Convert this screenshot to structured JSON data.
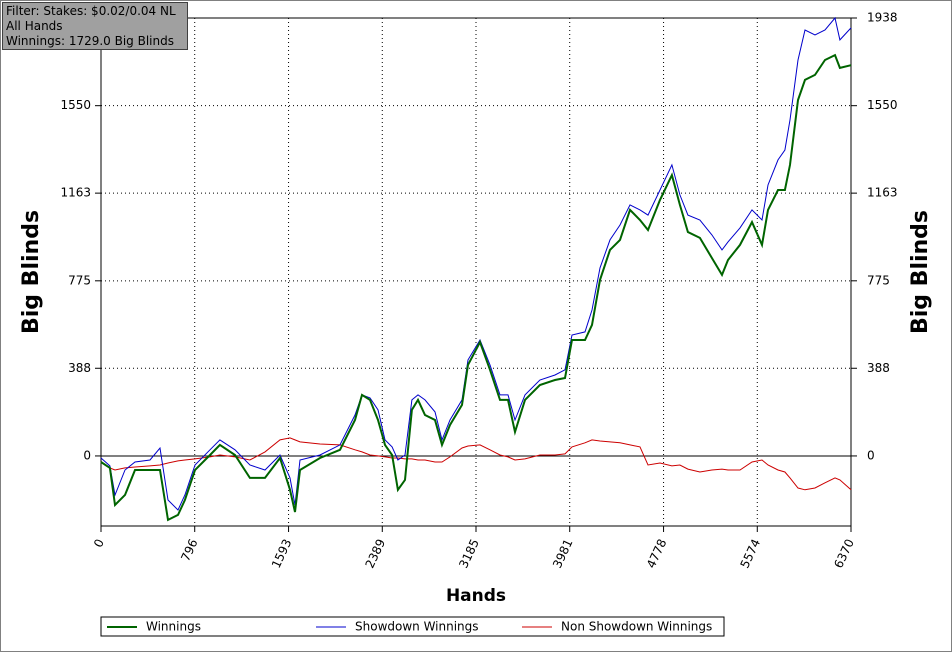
{
  "chart_data": {
    "type": "line",
    "filter_lines": [
      "Filter: Stakes: $0.02/0.04 NL",
      "All Hands",
      "Winnings: 1729.0 Big Blinds"
    ],
    "x_label": "Hands",
    "y_label": "Big Blinds",
    "x": [
      0,
      76,
      119,
      204,
      289,
      416,
      501,
      569,
      654,
      713,
      798,
      926,
      1010,
      1138,
      1265,
      1393,
      1520,
      1605,
      1648,
      1690,
      1860,
      2030,
      2157,
      2217,
      2285,
      2353,
      2412,
      2472,
      2522,
      2582,
      2641,
      2692,
      2752,
      2837,
      2896,
      2964,
      3066,
      3117,
      3219,
      3304,
      3389,
      3457,
      3516,
      3601,
      3728,
      3856,
      3941,
      4000,
      4111,
      4170,
      4238,
      4323,
      4408,
      4493,
      4578,
      4646,
      4748,
      4849,
      4917,
      4985,
      5087,
      5189,
      5274,
      5325,
      5427,
      5529,
      5614,
      5665,
      5750,
      5809,
      5852,
      5920,
      5979,
      6064,
      6149,
      6234,
      6276,
      6370
    ],
    "series": [
      {
        "name": "Winnings",
        "color": "#006400",
        "width": 2,
        "values": [
          -27,
          -53,
          -217,
          -173,
          -62,
          -62,
          -62,
          -283,
          -261,
          -195,
          -62,
          4,
          49,
          4,
          -97,
          -97,
          -9,
          -150,
          -248,
          -62,
          -9,
          27,
          159,
          270,
          248,
          159,
          49,
          4,
          -150,
          -106,
          204,
          248,
          181,
          159,
          49,
          137,
          226,
          403,
          504,
          381,
          248,
          248,
          106,
          248,
          314,
          336,
          345,
          513,
          513,
          580,
          779,
          912,
          956,
          1089,
          1044,
          1000,
          1133,
          1243,
          1111,
          991,
          965,
          876,
          801,
          867,
          934,
          1035,
          934,
          1089,
          1177,
          1177,
          1288,
          1575,
          1664,
          1686,
          1752,
          1774,
          1717,
          1729
        ]
      },
      {
        "name": "Showdown Winnings",
        "color": "#0000cc",
        "width": 1,
        "values": [
          -9,
          -44,
          -173,
          -62,
          -27,
          -18,
          35,
          -195,
          -239,
          -173,
          -40,
          27,
          71,
          27,
          -40,
          -62,
          4,
          -97,
          -217,
          -18,
          4,
          49,
          181,
          270,
          257,
          204,
          71,
          40,
          -18,
          4,
          248,
          270,
          248,
          195,
          71,
          159,
          248,
          425,
          513,
          403,
          270,
          270,
          159,
          270,
          336,
          358,
          381,
          535,
          549,
          646,
          832,
          956,
          1022,
          1111,
          1089,
          1066,
          1177,
          1288,
          1155,
          1066,
          1044,
          978,
          912,
          947,
          1009,
          1089,
          1044,
          1199,
          1310,
          1354,
          1487,
          1752,
          1885,
          1863,
          1885,
          1938,
          1841,
          1894
        ]
      },
      {
        "name": "Non Showdown Winnings",
        "color": "#cc0000",
        "width": 1,
        "values": [
          -27,
          -53,
          -62,
          -53,
          -49,
          -44,
          -40,
          -31,
          -22,
          -18,
          -13,
          -4,
          4,
          -4,
          -18,
          18,
          71,
          80,
          71,
          62,
          53,
          49,
          27,
          18,
          4,
          0,
          -4,
          -9,
          -9,
          -13,
          -13,
          -18,
          -18,
          -27,
          -27,
          -4,
          35,
          44,
          49,
          27,
          4,
          -4,
          -18,
          -13,
          4,
          4,
          9,
          40,
          58,
          71,
          66,
          62,
          58,
          49,
          40,
          -40,
          -31,
          -44,
          -40,
          -58,
          -71,
          -62,
          -58,
          -62,
          -62,
          -27,
          -18,
          -40,
          -62,
          -71,
          -97,
          -142,
          -150,
          -142,
          -119,
          -97,
          -106,
          -150
        ]
      }
    ],
    "xlim": [
      0,
      6370
    ],
    "xticks": [
      0,
      796,
      1593,
      2389,
      3185,
      3981,
      4778,
      5574,
      6370
    ],
    "ylim": [
      -310,
      1938
    ],
    "yticks": [
      0,
      388,
      775,
      1163,
      1550,
      1938
    ],
    "grid": true,
    "legend": "bottom"
  }
}
